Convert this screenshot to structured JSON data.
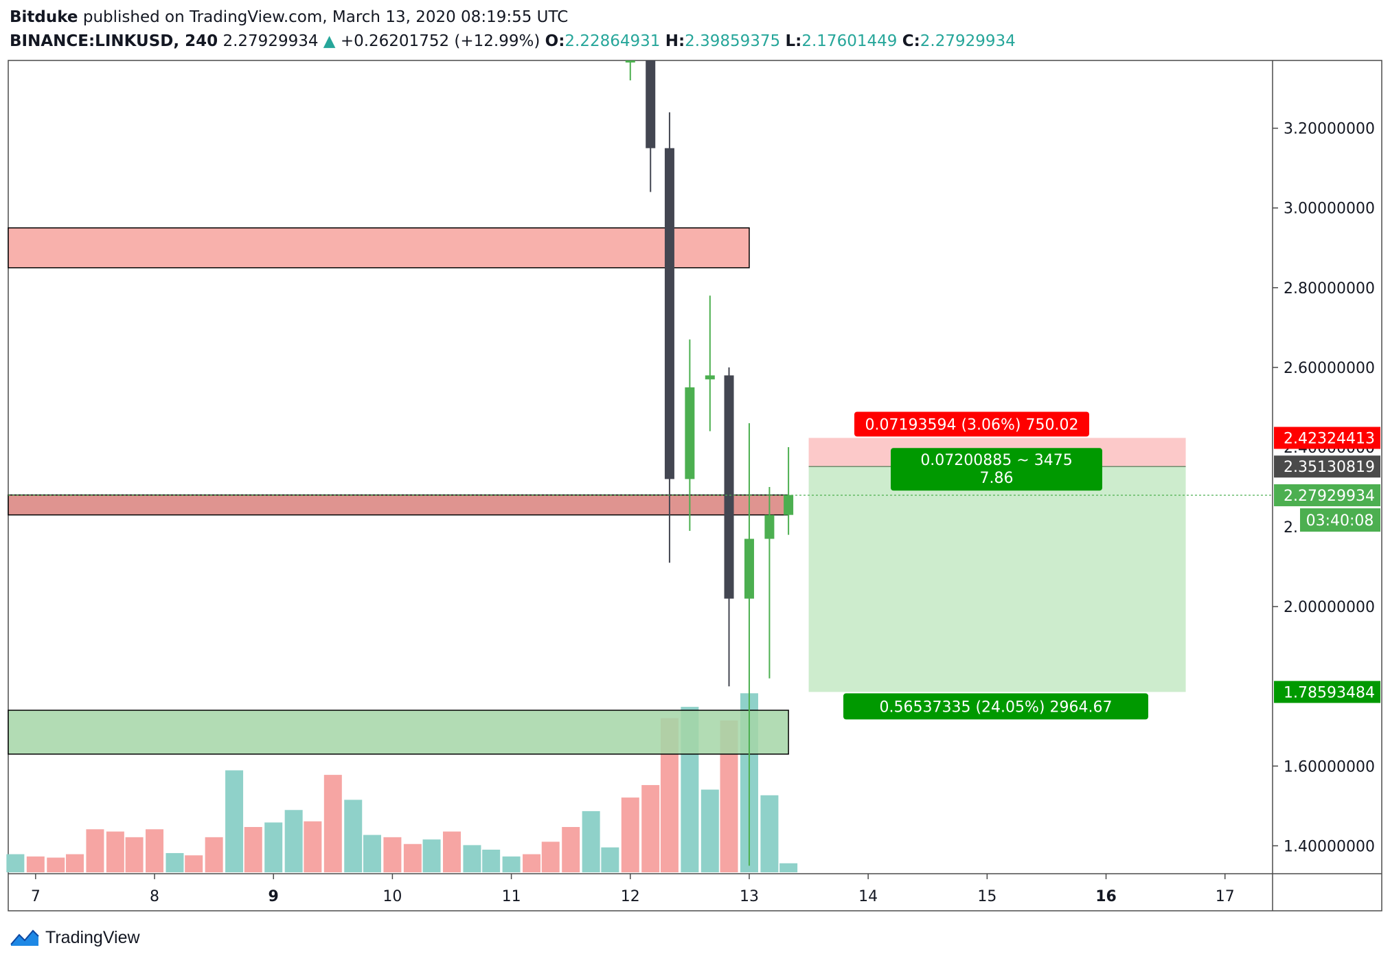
{
  "header": {
    "author": "Bitduke",
    "published_text": "published on TradingView.com, March 13, 2020 08:19:55 UTC",
    "symbol": "BINANCE:LINKUSD, 240",
    "last": "2.27929934",
    "change_arrow": "▲",
    "change": "+0.26201752 (+12.99%)",
    "o_label": "O:",
    "o_value": "2.22864931",
    "h_label": "H:",
    "h_value": "2.39859375",
    "l_label": "L:",
    "l_value": "2.17601449",
    "c_label": "C:",
    "c_value": "2.27929934"
  },
  "footer": {
    "brand": "TradingView",
    "logo_icon": "tradingview-logo-icon"
  },
  "colors": {
    "bull": "#4caf50",
    "bear": "#434651",
    "vol_bull": "#8fd1c9",
    "vol_bear": "#f6a5a3",
    "supply_zone": "#f7a39e",
    "support_zone": "#a5d6a7",
    "target_zone": "#cdeccd",
    "stop_zone": "#fcc9c9",
    "stop_label": "#ff0000",
    "target_label": "#009900",
    "axis_text": "#131722"
  },
  "chart_data": {
    "type": "candlestick",
    "symbol": "BINANCE:LINKUSD",
    "timeframe": "240",
    "ylim": [
      1.33,
      3.37
    ],
    "xlim": [
      6.77,
      17.4
    ],
    "price_axis_ticks": [
      "3.20000000",
      "3.00000000",
      "2.80000000",
      "2.60000000",
      "2.00000000",
      "1.60000000",
      "1.40000000"
    ],
    "time_axis_ticks": [
      {
        "label": "7",
        "x": 7
      },
      {
        "label": "8",
        "x": 8
      },
      {
        "label": "9",
        "x": 9,
        "bold": true
      },
      {
        "label": "10",
        "x": 10
      },
      {
        "label": "11",
        "x": 11
      },
      {
        "label": "12",
        "x": 12
      },
      {
        "label": "13",
        "x": 13
      },
      {
        "label": "14",
        "x": 14
      },
      {
        "label": "15",
        "x": 15
      },
      {
        "label": "16",
        "x": 16,
        "bold": true
      },
      {
        "label": "17",
        "x": 17
      }
    ],
    "price_labels": [
      {
        "value": 2.42324413,
        "text": "2.42324413",
        "bg": "#ff0000",
        "fg": "#ffffff"
      },
      {
        "value": 2.35130819,
        "text": "2.35130819",
        "bg": "#4a4a4a",
        "fg": "#ffffff"
      },
      {
        "value": 2.27929934,
        "text": "2.27929934",
        "bg": "#4caf50",
        "fg": "#ffffff"
      },
      {
        "value": 1.78593484,
        "text": "1.78593484",
        "bg": "#009900",
        "fg": "#ffffff"
      }
    ],
    "countdown": "03:40:08",
    "partial_ticks": [
      "2.40000000",
      "2."
    ],
    "candles": [
      {
        "t": 12.0,
        "o": 3.6,
        "h": 3.7,
        "l": 3.32,
        "c": 3.6
      },
      {
        "t": 12.17,
        "o": 3.4,
        "h": 3.45,
        "l": 3.04,
        "c": 3.15
      },
      {
        "t": 12.33,
        "o": 3.15,
        "h": 3.24,
        "l": 2.11,
        "c": 2.32
      },
      {
        "t": 12.5,
        "o": 2.32,
        "h": 2.67,
        "l": 2.19,
        "c": 2.55
      },
      {
        "t": 12.67,
        "o": 2.57,
        "h": 2.78,
        "l": 2.44,
        "c": 2.58
      },
      {
        "t": 12.83,
        "o": 2.58,
        "h": 2.6,
        "l": 1.8,
        "c": 2.02
      },
      {
        "t": 13.0,
        "o": 2.02,
        "h": 2.46,
        "l": 1.35,
        "c": 2.17
      },
      {
        "t": 13.17,
        "o": 2.17,
        "h": 2.3,
        "l": 1.82,
        "c": 2.23
      },
      {
        "t": 13.33,
        "o": 2.23,
        "h": 2.4,
        "l": 2.18,
        "c": 2.28
      }
    ],
    "volume": [
      {
        "t": 6.83,
        "v": 0.08,
        "d": "up"
      },
      {
        "t": 7.0,
        "v": 0.07,
        "d": "down"
      },
      {
        "t": 7.17,
        "v": 0.065,
        "d": "down"
      },
      {
        "t": 7.33,
        "v": 0.08,
        "d": "down"
      },
      {
        "t": 7.5,
        "v": 0.19,
        "d": "down"
      },
      {
        "t": 7.67,
        "v": 0.18,
        "d": "down"
      },
      {
        "t": 7.83,
        "v": 0.155,
        "d": "down"
      },
      {
        "t": 8.0,
        "v": 0.19,
        "d": "down"
      },
      {
        "t": 8.17,
        "v": 0.085,
        "d": "up"
      },
      {
        "t": 8.33,
        "v": 0.075,
        "d": "down"
      },
      {
        "t": 8.5,
        "v": 0.155,
        "d": "down"
      },
      {
        "t": 8.67,
        "v": 0.45,
        "d": "up"
      },
      {
        "t": 8.83,
        "v": 0.2,
        "d": "down"
      },
      {
        "t": 9.0,
        "v": 0.22,
        "d": "up"
      },
      {
        "t": 9.17,
        "v": 0.275,
        "d": "up"
      },
      {
        "t": 9.33,
        "v": 0.225,
        "d": "down"
      },
      {
        "t": 9.5,
        "v": 0.43,
        "d": "down"
      },
      {
        "t": 9.67,
        "v": 0.32,
        "d": "up"
      },
      {
        "t": 9.83,
        "v": 0.165,
        "d": "up"
      },
      {
        "t": 10.0,
        "v": 0.155,
        "d": "down"
      },
      {
        "t": 10.17,
        "v": 0.125,
        "d": "down"
      },
      {
        "t": 10.33,
        "v": 0.145,
        "d": "up"
      },
      {
        "t": 10.5,
        "v": 0.18,
        "d": "down"
      },
      {
        "t": 10.67,
        "v": 0.12,
        "d": "up"
      },
      {
        "t": 10.83,
        "v": 0.1,
        "d": "up"
      },
      {
        "t": 11.0,
        "v": 0.07,
        "d": "up"
      },
      {
        "t": 11.17,
        "v": 0.08,
        "d": "down"
      },
      {
        "t": 11.33,
        "v": 0.135,
        "d": "down"
      },
      {
        "t": 11.5,
        "v": 0.2,
        "d": "down"
      },
      {
        "t": 11.67,
        "v": 0.27,
        "d": "up"
      },
      {
        "t": 11.83,
        "v": 0.11,
        "d": "up"
      },
      {
        "t": 12.0,
        "v": 0.33,
        "d": "down"
      },
      {
        "t": 12.17,
        "v": 0.385,
        "d": "down"
      },
      {
        "t": 12.33,
        "v": 0.68,
        "d": "down"
      },
      {
        "t": 12.5,
        "v": 0.73,
        "d": "up"
      },
      {
        "t": 12.67,
        "v": 0.365,
        "d": "up"
      },
      {
        "t": 12.83,
        "v": 0.67,
        "d": "down"
      },
      {
        "t": 13.0,
        "v": 0.79,
        "d": "up"
      },
      {
        "t": 13.17,
        "v": 0.34,
        "d": "up"
      },
      {
        "t": 13.33,
        "v": 0.04,
        "d": "up"
      }
    ],
    "zones": [
      {
        "name": "supply-zone-upper",
        "x1": 6.77,
        "x2": 13.0,
        "y1": 2.85,
        "y2": 2.95,
        "fill": "#f7a39e"
      },
      {
        "name": "supply-zone-middle",
        "x1": 6.77,
        "x2": 13.33,
        "y1": 2.23,
        "y2": 2.28,
        "fill": "#d9817d"
      },
      {
        "name": "support-zone-lower",
        "x1": 6.77,
        "x2": 13.33,
        "y1": 1.63,
        "y2": 1.74,
        "fill": "#a5d6a7"
      }
    ],
    "long_position": {
      "x1": 13.5,
      "x2": 16.67,
      "entry": 2.35130819,
      "stop": 2.42324413,
      "target": 1.78593484,
      "stop_label": "0.07193594 (3.06%) 750.02",
      "target_label": "0.56537335 (24.05%) 2964.67",
      "center_label_line1": "0.07200885 ~ 3475",
      "center_label_line2": "7.86"
    },
    "last_price_line": 2.27929934
  }
}
